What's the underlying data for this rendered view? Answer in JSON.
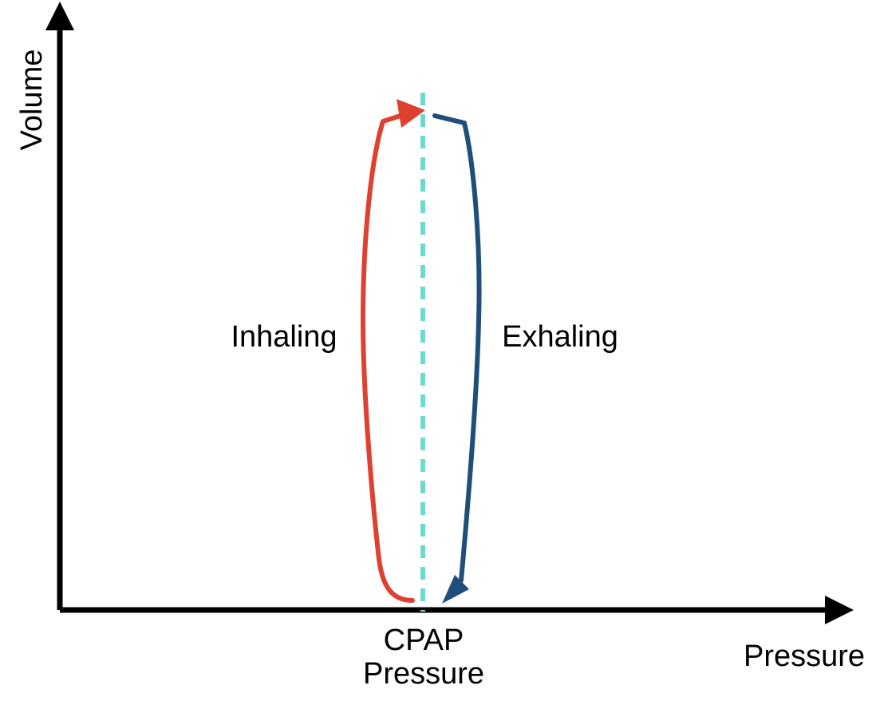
{
  "diagram": {
    "axes": {
      "x_label": "Pressure",
      "y_label": "Volume"
    },
    "cpap_marker": {
      "label_line1": "CPAP",
      "label_line2": "Pressure"
    },
    "curves": {
      "inhale_label": "Inhaling",
      "exhale_label": "Exhaling"
    }
  },
  "colors": {
    "axis": "#000000",
    "inhale": "#de4130",
    "exhale": "#1f4e7a",
    "cpap_line": "#6ddacb"
  }
}
